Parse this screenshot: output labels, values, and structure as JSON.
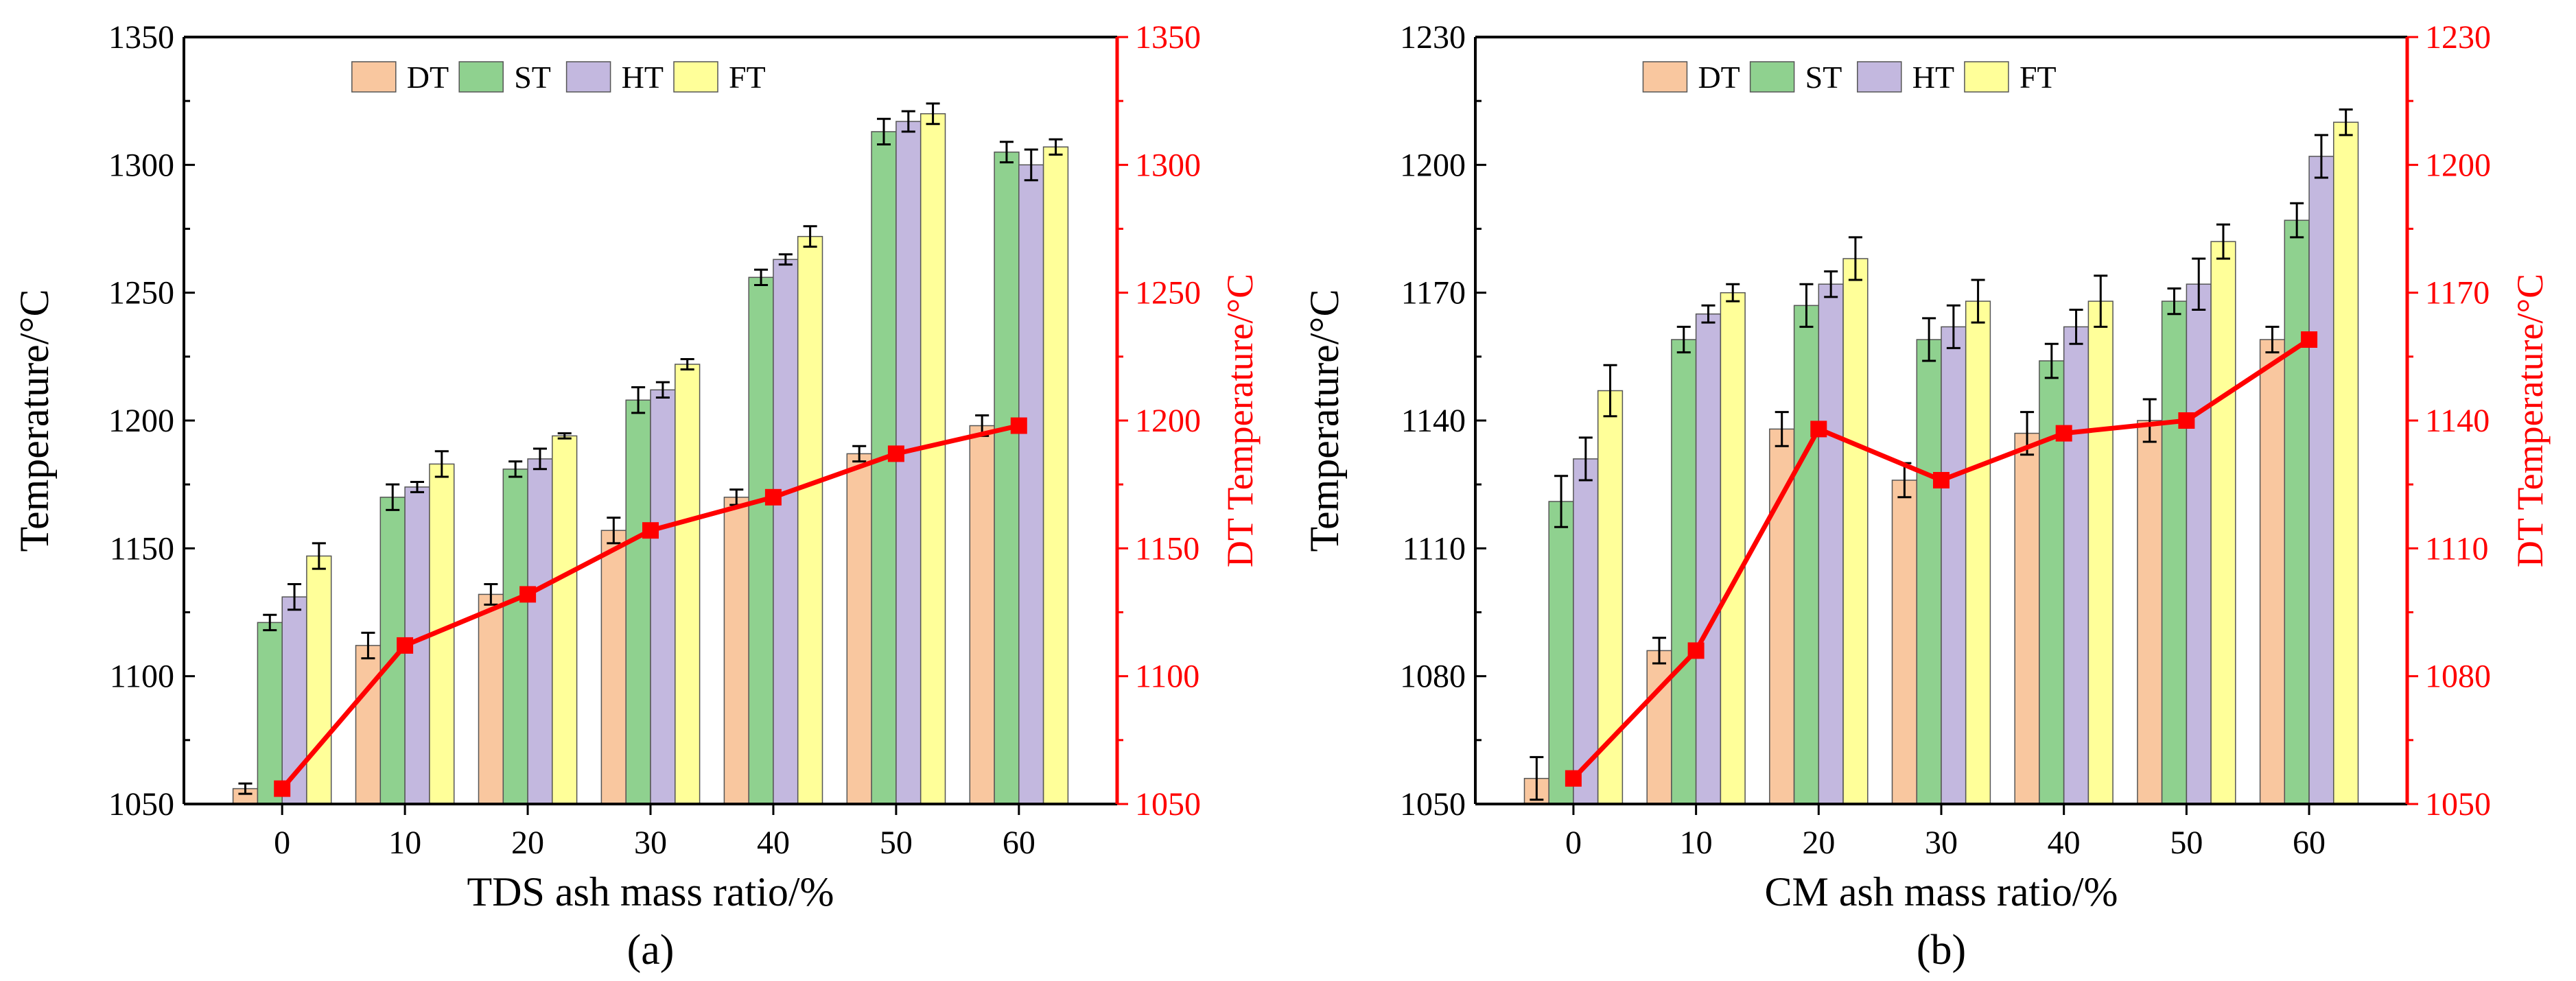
{
  "colors": {
    "DT": "#f9c79f",
    "ST": "#8fd18f",
    "HT": "#c3b8df",
    "FT": "#ffff99",
    "line": "#ff0000",
    "axis_right": "#ff0000"
  },
  "chart_data": [
    {
      "type": "bar",
      "panel_label": "(a)",
      "xlabel": "TDS ash mass ratio/%",
      "ylabel": "Temperature/°C",
      "ylabel_right": "DT Temperature/°C",
      "categories": [
        "0",
        "10",
        "20",
        "30",
        "40",
        "50",
        "60"
      ],
      "ylim": [
        1050,
        1350
      ],
      "yticks": [
        "1050",
        "1100",
        "1150",
        "1200",
        "1250",
        "1300",
        "1350"
      ],
      "legend": [
        "DT",
        "ST",
        "HT",
        "FT"
      ],
      "legend_position": "top-center",
      "series": [
        {
          "name": "DT",
          "values": [
            1056,
            1112,
            1132,
            1157,
            1170,
            1187,
            1198
          ],
          "errors": [
            2,
            5,
            4,
            5,
            3,
            3,
            4
          ]
        },
        {
          "name": "ST",
          "values": [
            1121,
            1170,
            1181,
            1208,
            1256,
            1313,
            1305
          ],
          "errors": [
            3,
            5,
            3,
            5,
            3,
            5,
            4
          ]
        },
        {
          "name": "HT",
          "values": [
            1131,
            1174,
            1185,
            1212,
            1263,
            1317,
            1300
          ],
          "errors": [
            5,
            2,
            4,
            3,
            2,
            4,
            6
          ]
        },
        {
          "name": "FT",
          "values": [
            1147,
            1183,
            1194,
            1222,
            1272,
            1320,
            1307
          ],
          "errors": [
            5,
            5,
            1,
            2,
            4,
            4,
            3
          ]
        }
      ],
      "line": {
        "name": "DT",
        "values": [
          1056,
          1112,
          1132,
          1157,
          1170,
          1187,
          1198
        ]
      }
    },
    {
      "type": "bar",
      "panel_label": "(b)",
      "xlabel": "CM ash mass ratio/%",
      "ylabel": "Temperature/°C",
      "ylabel_right": "DT Temperature/°C",
      "categories": [
        "0",
        "10",
        "20",
        "30",
        "40",
        "50",
        "60"
      ],
      "ylim": [
        1050,
        1230
      ],
      "yticks": [
        "1050",
        "1080",
        "1110",
        "1140",
        "1170",
        "1200",
        "1230"
      ],
      "legend": [
        "DT",
        "ST",
        "HT",
        "FT"
      ],
      "legend_position": "top-center",
      "series": [
        {
          "name": "DT",
          "values": [
            1056,
            1086,
            1138,
            1126,
            1137,
            1140,
            1159
          ],
          "errors": [
            5,
            3,
            4,
            4,
            5,
            5,
            3
          ]
        },
        {
          "name": "ST",
          "values": [
            1121,
            1159,
            1167,
            1159,
            1154,
            1168,
            1187
          ],
          "errors": [
            6,
            3,
            5,
            5,
            4,
            3,
            4
          ]
        },
        {
          "name": "HT",
          "values": [
            1131,
            1165,
            1172,
            1162,
            1162,
            1172,
            1202
          ],
          "errors": [
            5,
            2,
            3,
            5,
            4,
            6,
            5
          ]
        },
        {
          "name": "FT",
          "values": [
            1147,
            1170,
            1178,
            1168,
            1168,
            1182,
            1210
          ],
          "errors": [
            6,
            2,
            5,
            5,
            6,
            4,
            3
          ]
        }
      ],
      "line": {
        "name": "DT",
        "values": [
          1056,
          1086,
          1138,
          1126,
          1137,
          1140,
          1159
        ]
      }
    }
  ]
}
